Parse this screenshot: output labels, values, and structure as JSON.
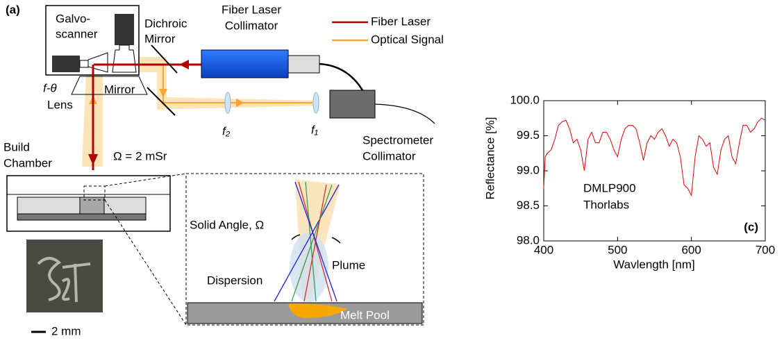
{
  "diagram": {
    "panel_label": "(a)",
    "galvo": [
      "Galvo-",
      "scanner"
    ],
    "dichroic": [
      "Dichroic",
      "Mirror"
    ],
    "fiber_collimator": [
      "Fiber Laser",
      "Collimator"
    ],
    "legend": [
      {
        "name": "Fiber Laser",
        "color": "#b00000"
      },
      {
        "name": "Optical Signal",
        "color": "#f7a530"
      }
    ],
    "lens": [
      "f-θ",
      "Lens"
    ],
    "mirror": "Mirror",
    "f2": "f₂",
    "f1": "f₁",
    "spectrometer": [
      "Spectrometer",
      "Collimator"
    ],
    "chamber": [
      "Build",
      "Chamber"
    ],
    "solid_angle_value": "Ω = 2 mSr",
    "solid_angle": "Solid Angle, Ω",
    "plume": "Plume",
    "dispersion": "Dispersion",
    "melt_pool": "Melt Pool",
    "scale": "2 mm"
  },
  "chart_data": {
    "type": "line",
    "panel_label": "(c)",
    "xlabel": "Wavlength [nm]",
    "ylabel": "Reflectance [%]",
    "annotations": [
      "DMLP900",
      "Thorlabs"
    ],
    "color": "#e00000",
    "x": [
      400,
      402,
      405,
      410,
      415,
      420,
      425,
      430,
      435,
      440,
      445,
      450,
      455,
      460,
      465,
      470,
      475,
      480,
      485,
      490,
      495,
      500,
      505,
      510,
      515,
      520,
      525,
      530,
      535,
      540,
      545,
      550,
      555,
      560,
      565,
      570,
      575,
      580,
      585,
      590,
      595,
      600,
      605,
      610,
      615,
      620,
      625,
      630,
      635,
      640,
      645,
      650,
      655,
      660,
      665,
      670,
      675,
      680,
      685,
      690,
      695,
      700
    ],
    "values": [
      98.75,
      99.2,
      99.25,
      99.3,
      99.45,
      99.65,
      99.7,
      99.72,
      99.6,
      99.4,
      99.45,
      99.3,
      99.0,
      99.45,
      99.55,
      99.4,
      99.4,
      99.55,
      99.55,
      99.45,
      99.3,
      99.2,
      99.45,
      99.6,
      99.65,
      99.65,
      99.6,
      99.4,
      99.15,
      99.4,
      99.5,
      99.45,
      99.55,
      99.6,
      99.5,
      99.35,
      99.45,
      99.4,
      99.2,
      98.8,
      98.75,
      98.65,
      99.2,
      99.5,
      99.45,
      99.35,
      99.4,
      99.05,
      98.95,
      99.3,
      99.45,
      99.5,
      99.2,
      99.1,
      99.4,
      99.65,
      99.65,
      99.55,
      99.6,
      99.7,
      99.75,
      99.72
    ],
    "xlim": [
      400,
      700
    ],
    "ylim": [
      98,
      100
    ],
    "xticks": [
      400,
      500,
      600,
      700
    ],
    "yticks": [
      {
        "value": 98,
        "label": "98.0"
      },
      98.5,
      {
        "value": 99,
        "label": "99.0"
      },
      99.5,
      {
        "value": 100,
        "label": "100.0"
      }
    ],
    "grid": false
  }
}
